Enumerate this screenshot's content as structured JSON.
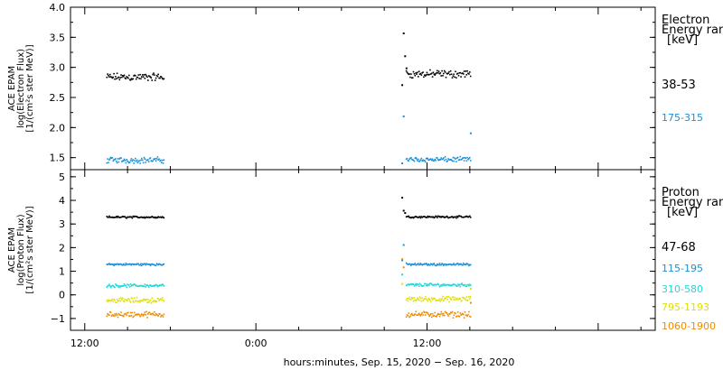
{
  "chart_data": [
    {
      "type": "scatter",
      "panel": "electron",
      "ylabel_lines": [
        "ACE EPAM",
        "log(Electron Flux)",
        "[1/(cm²s ster MeV)]"
      ],
      "legend_title_lines": [
        "Electron",
        "Energy range",
        "[keV]"
      ],
      "ylim": [
        1.3,
        4.0
      ],
      "yticks": [
        1.5,
        2.0,
        2.5,
        3.0,
        3.5,
        4.0
      ],
      "ytick_labels": [
        "1.5",
        "2.0",
        "2.5",
        "3.0",
        "3.5",
        "4.0"
      ],
      "series": [
        {
          "name": "38-53",
          "color": "#000000",
          "segments": [
            {
              "x_range": [
                -10.5,
                -6.5
              ],
              "level": 2.85,
              "jitter": 0.08
            },
            {
              "x_range": [
                10.5,
                15.0
              ],
              "level": 2.9,
              "jitter": 0.08
            }
          ],
          "points": [
            [
              10.2,
              2.72
            ],
            [
              10.3,
              3.58
            ],
            [
              10.4,
              3.2
            ],
            [
              10.5,
              3.0
            ]
          ]
        },
        {
          "name": "175-315",
          "color": "#1a8fd8",
          "segments": [
            {
              "x_range": [
                -10.5,
                -6.5
              ],
              "level": 1.47,
              "jitter": 0.06
            },
            {
              "x_range": [
                10.5,
                15.0
              ],
              "level": 1.48,
              "jitter": 0.05
            }
          ],
          "points": [
            [
              10.3,
              2.2
            ],
            [
              10.2,
              1.42
            ],
            [
              15.0,
              1.92
            ]
          ]
        }
      ]
    },
    {
      "type": "scatter",
      "panel": "proton",
      "ylabel_lines": [
        "ACE EPAM",
        "log(Proton Flux)",
        "[1/(cm²s ster MeV)]"
      ],
      "legend_title_lines": [
        "Proton",
        "Energy range",
        "[keV]"
      ],
      "ylim": [
        -1.5,
        5.3
      ],
      "yticks": [
        -1,
        0,
        1,
        2,
        3,
        4,
        5
      ],
      "ytick_labels": [
        "−1",
        "0",
        "1",
        "2",
        "3",
        "4",
        "5"
      ],
      "series": [
        {
          "name": "47-68",
          "color": "#000000",
          "segments": [
            {
              "x_range": [
                -10.5,
                -6.5
              ],
              "level": 3.32,
              "jitter": 0.05
            },
            {
              "x_range": [
                10.5,
                15.0
              ],
              "level": 3.33,
              "jitter": 0.05
            }
          ],
          "points": [
            [
              10.2,
              4.15
            ],
            [
              10.3,
              3.6
            ],
            [
              10.4,
              3.5
            ]
          ]
        },
        {
          "name": "115-195",
          "color": "#1a8fd8",
          "segments": [
            {
              "x_range": [
                -10.5,
                -6.5
              ],
              "level": 1.32,
              "jitter": 0.06
            },
            {
              "x_range": [
                10.5,
                15.0
              ],
              "level": 1.32,
              "jitter": 0.06
            }
          ],
          "points": [
            [
              10.3,
              2.15
            ],
            [
              10.2,
              1.5
            ]
          ]
        },
        {
          "name": "310-580",
          "color": "#22d8d8",
          "segments": [
            {
              "x_range": [
                -10.5,
                -6.5
              ],
              "level": 0.42,
              "jitter": 0.08
            },
            {
              "x_range": [
                10.5,
                15.0
              ],
              "level": 0.45,
              "jitter": 0.08
            }
          ],
          "points": [
            [
              10.2,
              0.9
            ]
          ]
        },
        {
          "name": "795-1193",
          "color": "#e0e000",
          "segments": [
            {
              "x_range": [
                -10.5,
                -6.5
              ],
              "level": -0.2,
              "jitter": 0.13
            },
            {
              "x_range": [
                10.5,
                15.0
              ],
              "level": -0.15,
              "jitter": 0.13
            }
          ],
          "points": [
            [
              10.2,
              0.5
            ],
            [
              15.0,
              0.3
            ]
          ]
        },
        {
          "name": "1060-1900",
          "color": "#f08a00",
          "segments": [
            {
              "x_range": [
                -10.5,
                -6.5
              ],
              "level": -0.8,
              "jitter": 0.15
            },
            {
              "x_range": [
                10.5,
                15.0
              ],
              "level": -0.8,
              "jitter": 0.15
            }
          ],
          "points": [
            [
              10.2,
              1.55
            ],
            [
              10.3,
              1.2
            ],
            [
              15.0,
              -0.3
            ]
          ]
        }
      ]
    }
  ],
  "xaxis": {
    "xlim": [
      -13.0,
      28.0
    ],
    "major_ticks": [
      -12,
      0,
      12,
      24
    ],
    "minor_ticks": [
      -9,
      -6,
      -3,
      3,
      6,
      9,
      15,
      18,
      21,
      27
    ],
    "tick_labels": [
      "12:00",
      "0:00",
      "12:00"
    ],
    "tick_label_positions": [
      -12,
      0,
      12
    ],
    "xlabel": "hours:minutes, Sep. 15, 2020 − Sep. 16, 2020"
  }
}
